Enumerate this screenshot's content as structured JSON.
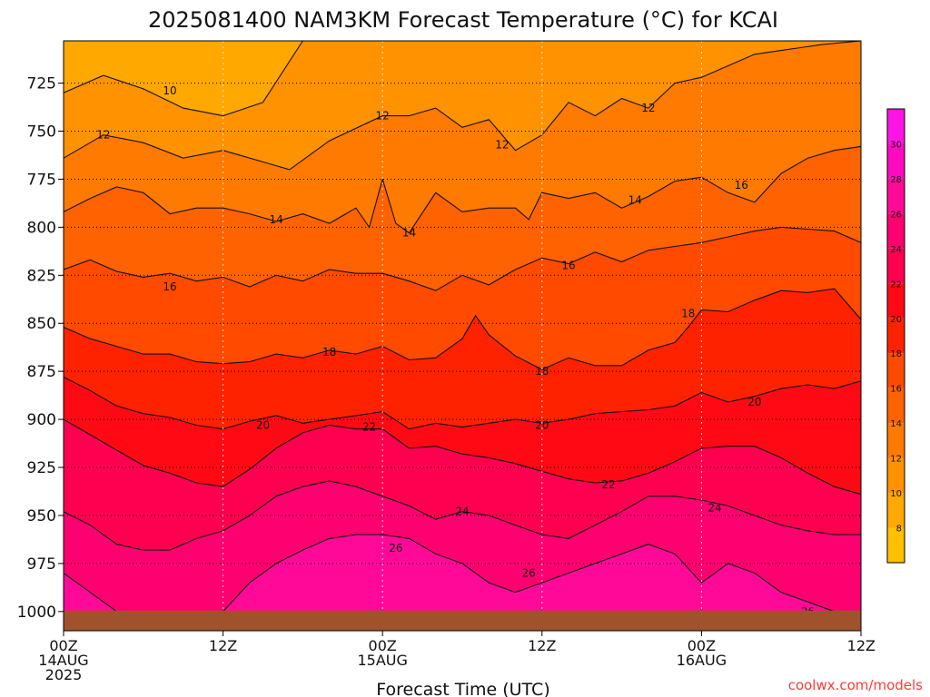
{
  "chart_data": {
    "type": "contour",
    "title": "2025081400 NAM3KM Forecast Temperature (°C) for KCAI",
    "xlabel": "Forecast Time (UTC)",
    "ylabel": "",
    "x_ticks": [
      {
        "hours": 0,
        "lines": [
          "00Z",
          "14AUG",
          "2025"
        ]
      },
      {
        "hours": 12,
        "lines": [
          "12Z"
        ]
      },
      {
        "hours": 24,
        "lines": [
          "00Z",
          "15AUG"
        ]
      },
      {
        "hours": 36,
        "lines": [
          "12Z"
        ]
      },
      {
        "hours": 48,
        "lines": [
          "00Z",
          "16AUG"
        ]
      },
      {
        "hours": 60,
        "lines": [
          "12Z"
        ]
      }
    ],
    "xlim_hours": [
      0,
      60
    ],
    "y_ticks": [
      725,
      750,
      775,
      800,
      825,
      850,
      875,
      900,
      925,
      950,
      975,
      1000
    ],
    "ylim_hpa": [
      703,
      1010
    ],
    "grid": true,
    "colorbar": {
      "position": "right",
      "levels": [
        6,
        8,
        10,
        12,
        14,
        16,
        18,
        20,
        22,
        24,
        26,
        28,
        30,
        32
      ],
      "tick_labels": [
        8,
        10,
        12,
        14,
        16,
        18,
        20,
        22,
        24,
        26,
        28,
        30
      ],
      "colors": [
        "#ffc000",
        "#ffa800",
        "#ff9200",
        "#ff7a00",
        "#ff6200",
        "#ff4a00",
        "#ff2200",
        "#ff0a14",
        "#ff0050",
        "#ff0070",
        "#ff0a98",
        "#ff0ac0",
        "#ff14e6"
      ]
    },
    "series": [
      {
        "name": "10",
        "x": [
          0,
          3,
          6,
          9,
          12,
          15,
          18
        ],
        "y": [
          730,
          721,
          728,
          738,
          742,
          735,
          703
        ]
      },
      {
        "name": "12",
        "x": [
          0,
          3,
          6,
          9,
          12,
          15,
          17,
          20,
          24,
          26,
          28,
          30,
          32,
          34,
          36,
          38,
          40,
          42,
          44,
          46,
          48,
          50,
          52,
          54,
          57,
          60
        ],
        "y": [
          764,
          752,
          756,
          764,
          760,
          766,
          770,
          755,
          742,
          742,
          738,
          748,
          744,
          760,
          752,
          735,
          742,
          733,
          738,
          725,
          722,
          716,
          710,
          708,
          705,
          703
        ]
      },
      {
        "name": "14",
        "x": [
          0,
          2,
          4,
          6,
          8,
          10,
          12,
          14,
          16,
          18,
          20,
          22,
          23,
          24,
          25,
          26,
          28,
          30,
          32,
          34,
          35,
          36,
          38,
          40,
          42,
          44,
          46,
          48,
          50,
          52,
          54,
          56,
          58,
          60
        ],
        "y": [
          792,
          785,
          779,
          782,
          793,
          790,
          790,
          793,
          797,
          793,
          798,
          790,
          800,
          775,
          798,
          803,
          782,
          792,
          790,
          790,
          796,
          782,
          785,
          782,
          790,
          784,
          776,
          774,
          782,
          787,
          772,
          764,
          760,
          758
        ]
      },
      {
        "name": "16",
        "x": [
          0,
          2,
          4,
          6,
          8,
          10,
          12,
          14,
          16,
          18,
          20,
          22,
          24,
          26,
          28,
          30,
          32,
          34,
          36,
          38,
          40,
          42,
          44,
          46,
          48,
          50,
          52,
          54,
          56,
          58,
          60
        ],
        "y": [
          822,
          817,
          823,
          826,
          824,
          828,
          826,
          831,
          825,
          828,
          822,
          824,
          824,
          828,
          833,
          825,
          830,
          822,
          816,
          819,
          813,
          818,
          812,
          810,
          808,
          805,
          802,
          800,
          801,
          802,
          808
        ]
      },
      {
        "name": "18",
        "x": [
          0,
          2,
          4,
          6,
          8,
          10,
          12,
          14,
          16,
          18,
          20,
          22,
          24,
          26,
          28,
          30,
          31,
          32,
          34,
          36,
          38,
          40,
          42,
          44,
          46,
          47,
          48,
          50,
          52,
          54,
          56,
          58,
          60
        ],
        "y": [
          852,
          858,
          862,
          866,
          866,
          870,
          871,
          870,
          866,
          868,
          864,
          866,
          862,
          869,
          868,
          858,
          846,
          856,
          867,
          874,
          868,
          872,
          872,
          864,
          860,
          852,
          843,
          844,
          838,
          833,
          834,
          832,
          848
        ]
      },
      {
        "name": "20",
        "x": [
          0,
          2,
          4,
          6,
          8,
          10,
          12,
          14,
          16,
          18,
          20,
          22,
          24,
          26,
          28,
          30,
          32,
          34,
          36,
          38,
          40,
          42,
          44,
          46,
          48,
          50,
          52,
          54,
          56,
          58,
          60
        ],
        "y": [
          878,
          885,
          893,
          897,
          899,
          903,
          905,
          901,
          898,
          902,
          900,
          898,
          896,
          905,
          902,
          904,
          902,
          900,
          902,
          900,
          897,
          896,
          895,
          893,
          886,
          891,
          888,
          884,
          882,
          884,
          880
        ]
      },
      {
        "name": "22",
        "x": [
          0,
          2,
          4,
          6,
          8,
          10,
          12,
          14,
          16,
          18,
          20,
          22,
          24,
          26,
          28,
          30,
          32,
          34,
          36,
          38,
          40,
          42,
          44,
          46,
          48,
          50,
          52,
          54,
          56,
          58,
          60
        ],
        "y": [
          900,
          908,
          916,
          924,
          928,
          933,
          935,
          926,
          915,
          907,
          903,
          905,
          905,
          915,
          914,
          918,
          920,
          923,
          927,
          931,
          933,
          932,
          928,
          922,
          915,
          914,
          914,
          920,
          928,
          935,
          939
        ]
      },
      {
        "name": "24",
        "x": [
          0,
          2,
          4,
          6,
          8,
          10,
          12,
          14,
          16,
          18,
          20,
          22,
          24,
          26,
          28,
          30,
          32,
          34,
          36,
          38,
          40,
          42,
          44,
          46,
          48,
          50,
          52,
          54,
          56,
          58,
          60
        ],
        "y": [
          948,
          955,
          965,
          968,
          968,
          962,
          958,
          950,
          940,
          935,
          932,
          935,
          940,
          945,
          952,
          948,
          950,
          955,
          960,
          962,
          955,
          948,
          940,
          940,
          942,
          945,
          950,
          955,
          958,
          960,
          960
        ]
      },
      {
        "name": "26",
        "x": [
          0,
          2,
          4,
          6,
          8,
          10,
          12,
          14,
          16,
          18,
          20,
          22,
          24,
          26,
          28,
          30,
          32,
          34,
          36,
          38,
          40,
          42,
          44,
          46,
          48,
          50,
          52,
          54,
          56,
          58,
          60
        ],
        "y": [
          980,
          990,
          1000,
          1000,
          1000,
          1002,
          1000,
          985,
          975,
          968,
          962,
          960,
          960,
          962,
          970,
          975,
          985,
          990,
          985,
          980,
          975,
          970,
          965,
          970,
          985,
          975,
          980,
          990,
          995,
          1000,
          1002
        ]
      }
    ],
    "contour_labels": [
      {
        "text": "10",
        "x": 8,
        "y": 729
      },
      {
        "text": "12",
        "x": 3,
        "y": 752
      },
      {
        "text": "12",
        "x": 24,
        "y": 742
      },
      {
        "text": "12",
        "x": 33,
        "y": 757
      },
      {
        "text": "12",
        "x": 44,
        "y": 738
      },
      {
        "text": "14",
        "x": 16,
        "y": 796
      },
      {
        "text": "14",
        "x": 26,
        "y": 803
      },
      {
        "text": "14",
        "x": 43,
        "y": 786
      },
      {
        "text": "16",
        "x": 51,
        "y": 778
      },
      {
        "text": "16",
        "x": 8,
        "y": 831
      },
      {
        "text": "16",
        "x": 38,
        "y": 820
      },
      {
        "text": "18",
        "x": 20,
        "y": 865
      },
      {
        "text": "18",
        "x": 36,
        "y": 875
      },
      {
        "text": "18",
        "x": 47,
        "y": 845
      },
      {
        "text": "20",
        "x": 15,
        "y": 903
      },
      {
        "text": "20",
        "x": 36,
        "y": 903
      },
      {
        "text": "20",
        "x": 52,
        "y": 891
      },
      {
        "text": "22",
        "x": 23,
        "y": 904
      },
      {
        "text": "22",
        "x": 41,
        "y": 934
      },
      {
        "text": "24",
        "x": 30,
        "y": 948
      },
      {
        "text": "24",
        "x": 49,
        "y": 946
      },
      {
        "text": "26",
        "x": 25,
        "y": 967
      },
      {
        "text": "26",
        "x": 35,
        "y": 980
      },
      {
        "text": "26",
        "x": 56,
        "y": 1000
      }
    ],
    "surface_color": "#a0522d"
  },
  "credit": "coolwx.com/models"
}
